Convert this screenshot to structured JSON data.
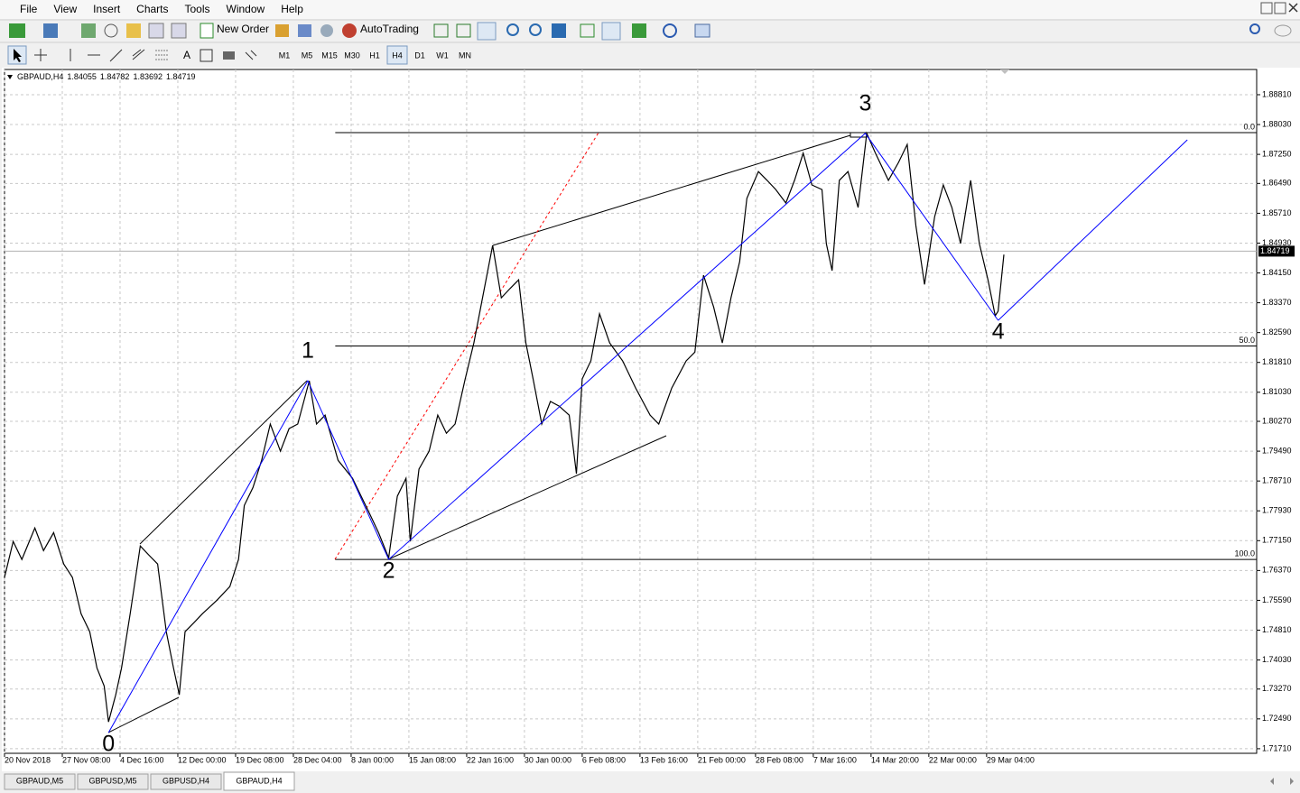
{
  "menu": [
    "File",
    "View",
    "Insert",
    "Charts",
    "Tools",
    "Window",
    "Help"
  ],
  "toolbar": {
    "new_order": "New Order",
    "auto_trading": "AutoTrading"
  },
  "timeframes": {
    "items": [
      "M1",
      "M5",
      "M15",
      "M30",
      "H1",
      "H4",
      "D1",
      "W1",
      "MN"
    ],
    "active": "H4"
  },
  "tabs": {
    "items": [
      "GBPAUD,M5",
      "GBPUSD,M5",
      "GBPUSD,H4",
      "GBPAUD,H4"
    ],
    "active": "GBPAUD,H4"
  },
  "chart_data": {
    "type": "line",
    "symbol": "GBPAUD,H4",
    "ohlc": {
      "open": 1.84055,
      "high": 1.84782,
      "low": 1.83692,
      "close": 1.84719
    },
    "color": "#000000",
    "grid": true,
    "xlim": [
      0,
      867
    ],
    "ylim": [
      1.7159,
      1.8947
    ],
    "xticks": [
      {
        "value": 0,
        "label": "20 Nov 2018"
      },
      {
        "value": 40,
        "label": "27 Nov 08:00"
      },
      {
        "value": 80,
        "label": "4 Dec 16:00"
      },
      {
        "value": 120,
        "label": "12 Dec 00:00"
      },
      {
        "value": 160,
        "label": "19 Dec 08:00"
      },
      {
        "value": 200,
        "label": "28 Dec 04:00"
      },
      {
        "value": 240,
        "label": "8 Jan 00:00"
      },
      {
        "value": 280,
        "label": "15 Jan 08:00"
      },
      {
        "value": 320,
        "label": "22 Jan 16:00"
      },
      {
        "value": 360,
        "label": "30 Jan 00:00"
      },
      {
        "value": 400,
        "label": "6 Feb 08:00"
      },
      {
        "value": 440,
        "label": "13 Feb 16:00"
      },
      {
        "value": 480,
        "label": "21 Feb 00:00"
      },
      {
        "value": 520,
        "label": "28 Feb 08:00"
      },
      {
        "value": 560,
        "label": "7 Mar 16:00"
      },
      {
        "value": 600,
        "label": "14 Mar 20:00"
      },
      {
        "value": 640,
        "label": "22 Mar 00:00"
      },
      {
        "value": 680,
        "label": "29 Mar 04:00"
      }
    ],
    "yticks": [
      {
        "value": 1.8881,
        "label": "1.88810"
      },
      {
        "value": 1.8803,
        "label": "1.88030"
      },
      {
        "value": 1.8725,
        "label": "1.87250"
      },
      {
        "value": 1.8649,
        "label": "1.86490"
      },
      {
        "value": 1.8571,
        "label": "1.85710"
      },
      {
        "value": 1.8493,
        "label": "1.84930"
      },
      {
        "value": 1.8415,
        "label": "1.84150"
      },
      {
        "value": 1.8337,
        "label": "1.83370"
      },
      {
        "value": 1.8259,
        "label": "1.82590"
      },
      {
        "value": 1.8181,
        "label": "1.81810"
      },
      {
        "value": 1.8103,
        "label": "1.81030"
      },
      {
        "value": 1.8027,
        "label": "1.80270"
      },
      {
        "value": 1.7949,
        "label": "1.79490"
      },
      {
        "value": 1.7871,
        "label": "1.78710"
      },
      {
        "value": 1.7793,
        "label": "1.77930"
      },
      {
        "value": 1.7715,
        "label": "1.77150"
      },
      {
        "value": 1.7637,
        "label": "1.76370"
      },
      {
        "value": 1.7559,
        "label": "1.75590"
      },
      {
        "value": 1.7481,
        "label": "1.74810"
      },
      {
        "value": 1.7403,
        "label": "1.74030"
      },
      {
        "value": 1.7327,
        "label": "1.73270"
      },
      {
        "value": 1.7249,
        "label": "1.72490"
      },
      {
        "value": 1.7171,
        "label": "1.71710"
      }
    ],
    "x": [
      0,
      6,
      12,
      21,
      27,
      34,
      41,
      47,
      53,
      59,
      64,
      69,
      72,
      77,
      81,
      87,
      94,
      100,
      106,
      112,
      117,
      121,
      125,
      131,
      137,
      147,
      156,
      162,
      166,
      172,
      178,
      184,
      191,
      197,
      203,
      211,
      216,
      222,
      231,
      241,
      247,
      253,
      259,
      266,
      272,
      278,
      281,
      287,
      294,
      300,
      306,
      312,
      319,
      325,
      331,
      338,
      344,
      350,
      356,
      361,
      366,
      372,
      378,
      384,
      391,
      396,
      400,
      406,
      412,
      419,
      428,
      437,
      447,
      453,
      462,
      472,
      478,
      484,
      491,
      497,
      503,
      509,
      514,
      522,
      528,
      534,
      541,
      547,
      553,
      559,
      566,
      569,
      573,
      578,
      584,
      591,
      597,
      603,
      612,
      619,
      625,
      631,
      637,
      644,
      650,
      656,
      662,
      669,
      675,
      681,
      686,
      688,
      692
    ],
    "values": [
      1.7619,
      1.7713,
      1.7666,
      1.7748,
      1.7689,
      1.7736,
      1.7654,
      1.7619,
      1.7524,
      1.7477,
      1.7382,
      1.7335,
      1.7241,
      1.7312,
      1.7382,
      1.7524,
      1.7701,
      1.7677,
      1.7654,
      1.7477,
      1.7382,
      1.7312,
      1.7477,
      1.75,
      1.7524,
      1.7559,
      1.7595,
      1.7666,
      1.7807,
      1.7854,
      1.7925,
      1.802,
      1.7949,
      1.8008,
      1.802,
      1.8133,
      1.802,
      1.8043,
      1.7925,
      1.7878,
      1.7831,
      1.7784,
      1.7736,
      1.767,
      1.7831,
      1.7878,
      1.7713,
      1.7902,
      1.7949,
      1.8043,
      1.7996,
      1.802,
      1.8138,
      1.8232,
      1.835,
      1.8487,
      1.835,
      1.8374,
      1.8397,
      1.8232,
      1.8138,
      1.802,
      1.8079,
      1.8067,
      1.8043,
      1.789,
      1.8138,
      1.8185,
      1.8308,
      1.8232,
      1.8185,
      1.8114,
      1.8043,
      1.802,
      1.8114,
      1.8185,
      1.8208,
      1.8409,
      1.8326,
      1.8232,
      1.835,
      1.8444,
      1.861,
      1.868,
      1.8657,
      1.8633,
      1.8598,
      1.8657,
      1.8728,
      1.8645,
      1.8633,
      1.8492,
      1.8421,
      1.8657,
      1.868,
      1.8586,
      1.878,
      1.8728,
      1.8657,
      1.8704,
      1.8751,
      1.8539,
      1.8385,
      1.8562,
      1.8645,
      1.8586,
      1.8492,
      1.8657,
      1.8492,
      1.8397,
      1.8303,
      1.8315,
      1.8463
    ],
    "waves": {
      "color": "#0000ff",
      "points": [
        {
          "label": "0",
          "x": 72,
          "y": 1.7213
        },
        {
          "label": "1",
          "x": 210,
          "y": 1.8133
        },
        {
          "label": "2",
          "x": 266,
          "y": 1.7666
        },
        {
          "label": "3",
          "x": 596,
          "y": 1.878
        },
        {
          "label": "4",
          "x": 688,
          "y": 1.8291
        }
      ],
      "projection": {
        "x": 819,
        "y": 1.8763
      }
    },
    "fibo": {
      "start_x": 229,
      "levels": [
        {
          "label": "0.0",
          "value": 1.8782
        },
        {
          "label": "50.0",
          "value": 1.8224
        },
        {
          "label": "100.0",
          "value": 1.7666
        }
      ]
    }
  }
}
